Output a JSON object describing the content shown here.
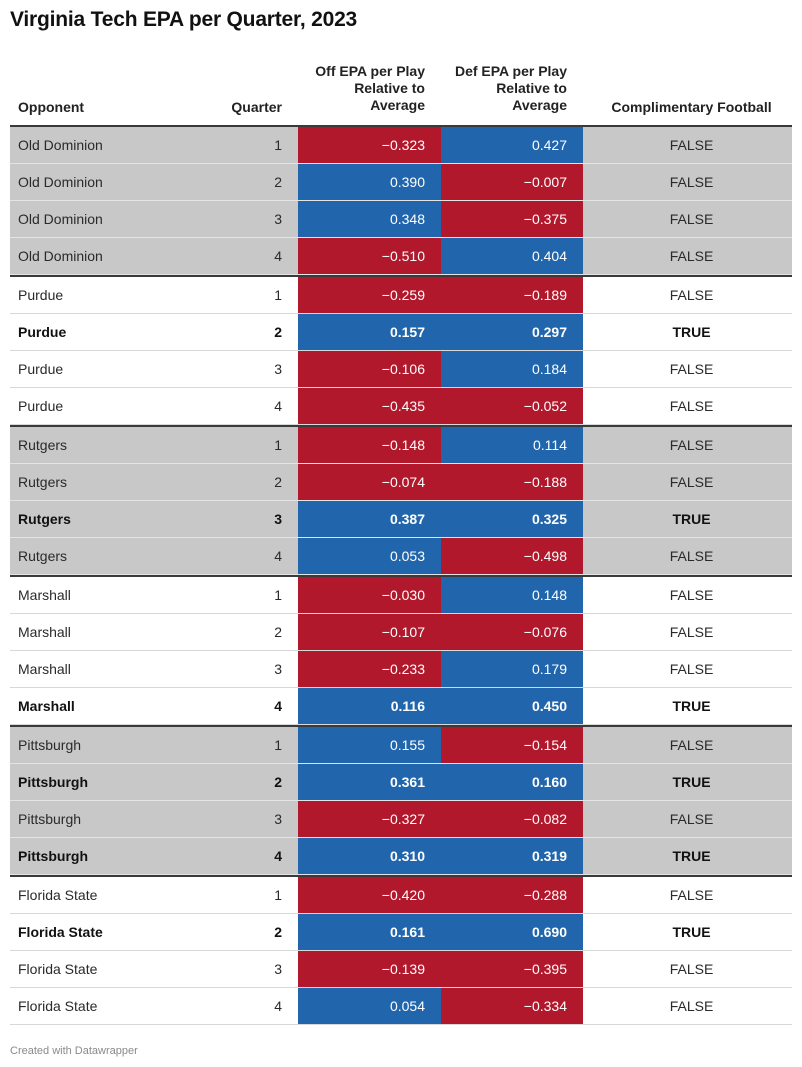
{
  "title": "Virginia Tech EPA per Quarter, 2023",
  "footer": "Created with Datawrapper",
  "colors": {
    "positive": "#2166ac",
    "negative": "#b2182b",
    "shade": "#c8c8c8"
  },
  "chart_data": {
    "type": "table",
    "title": "Virginia Tech EPA per Quarter, 2023",
    "columns": [
      "Opponent",
      "Quarter",
      "Off EPA per Play Relative to Average",
      "Def EPA per Play Relative to Average",
      "Complimentary Football"
    ],
    "rows": [
      {
        "opponent": "Old Dominion",
        "quarter": "1",
        "off": "−0.323",
        "def": "0.427",
        "comp": "FALSE"
      },
      {
        "opponent": "Old Dominion",
        "quarter": "2",
        "off": "0.390",
        "def": "−0.007",
        "comp": "FALSE"
      },
      {
        "opponent": "Old Dominion",
        "quarter": "3",
        "off": "0.348",
        "def": "−0.375",
        "comp": "FALSE"
      },
      {
        "opponent": "Old Dominion",
        "quarter": "4",
        "off": "−0.510",
        "def": "0.404",
        "comp": "FALSE"
      },
      {
        "opponent": "Purdue",
        "quarter": "1",
        "off": "−0.259",
        "def": "−0.189",
        "comp": "FALSE"
      },
      {
        "opponent": "Purdue",
        "quarter": "2",
        "off": "0.157",
        "def": "0.297",
        "comp": "TRUE"
      },
      {
        "opponent": "Purdue",
        "quarter": "3",
        "off": "−0.106",
        "def": "0.184",
        "comp": "FALSE"
      },
      {
        "opponent": "Purdue",
        "quarter": "4",
        "off": "−0.435",
        "def": "−0.052",
        "comp": "FALSE"
      },
      {
        "opponent": "Rutgers",
        "quarter": "1",
        "off": "−0.148",
        "def": "0.114",
        "comp": "FALSE"
      },
      {
        "opponent": "Rutgers",
        "quarter": "2",
        "off": "−0.074",
        "def": "−0.188",
        "comp": "FALSE"
      },
      {
        "opponent": "Rutgers",
        "quarter": "3",
        "off": "0.387",
        "def": "0.325",
        "comp": "TRUE"
      },
      {
        "opponent": "Rutgers",
        "quarter": "4",
        "off": "0.053",
        "def": "−0.498",
        "comp": "FALSE"
      },
      {
        "opponent": "Marshall",
        "quarter": "1",
        "off": "−0.030",
        "def": "0.148",
        "comp": "FALSE"
      },
      {
        "opponent": "Marshall",
        "quarter": "2",
        "off": "−0.107",
        "def": "−0.076",
        "comp": "FALSE"
      },
      {
        "opponent": "Marshall",
        "quarter": "3",
        "off": "−0.233",
        "def": "0.179",
        "comp": "FALSE"
      },
      {
        "opponent": "Marshall",
        "quarter": "4",
        "off": "0.116",
        "def": "0.450",
        "comp": "TRUE"
      },
      {
        "opponent": "Pittsburgh",
        "quarter": "1",
        "off": "0.155",
        "def": "−0.154",
        "comp": "FALSE"
      },
      {
        "opponent": "Pittsburgh",
        "quarter": "2",
        "off": "0.361",
        "def": "0.160",
        "comp": "TRUE"
      },
      {
        "opponent": "Pittsburgh",
        "quarter": "3",
        "off": "−0.327",
        "def": "−0.082",
        "comp": "FALSE"
      },
      {
        "opponent": "Pittsburgh",
        "quarter": "4",
        "off": "0.310",
        "def": "0.319",
        "comp": "TRUE"
      },
      {
        "opponent": "Florida State",
        "quarter": "1",
        "off": "−0.420",
        "def": "−0.288",
        "comp": "FALSE"
      },
      {
        "opponent": "Florida State",
        "quarter": "2",
        "off": "0.161",
        "def": "0.690",
        "comp": "TRUE"
      },
      {
        "opponent": "Florida State",
        "quarter": "3",
        "off": "−0.139",
        "def": "−0.395",
        "comp": "FALSE"
      },
      {
        "opponent": "Florida State",
        "quarter": "4",
        "off": "0.054",
        "def": "−0.334",
        "comp": "FALSE"
      }
    ]
  }
}
